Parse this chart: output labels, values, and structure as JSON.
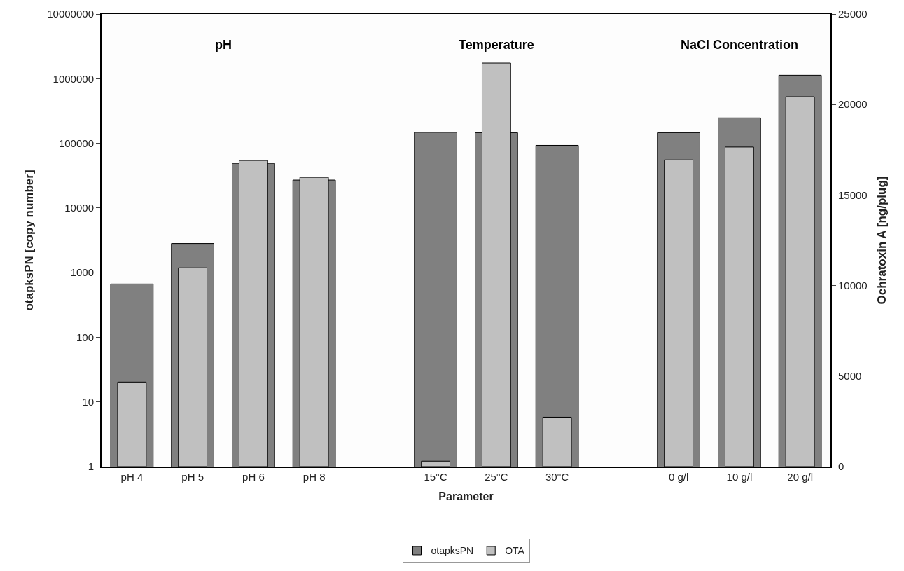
{
  "chart_data": {
    "type": "bar",
    "xlabel": "Parameter",
    "ylabel": "otapksPN [copy number]",
    "y2label": "Ochratoxin A [ng/plug]",
    "categories": [
      "pH 4",
      "pH 5",
      "pH 6",
      "pH 8",
      null,
      "15°C",
      "25°C",
      "30°C",
      null,
      "0 g/l",
      "10 g/l",
      "20 g/l"
    ],
    "series": [
      {
        "name": "otapksPN",
        "color": "#808080",
        "values": [
          667,
          2820,
          49000,
          27000,
          null,
          148000,
          146000,
          93000,
          null,
          146000,
          247000,
          1130000
        ]
      },
      {
        "name": "OTA",
        "color": "#c0c0c0",
        "axis": "y2",
        "values": [
          4670,
          10980,
          16910,
          15980,
          null,
          300,
          22290,
          2730,
          null,
          16940,
          17650,
          20430
        ]
      }
    ],
    "annotations": [
      "pH",
      "Temperature",
      "NaCl Concentration"
    ],
    "log": "y",
    "ylim": [
      1,
      10000000
    ],
    "yticks": [
      1,
      10,
      100,
      1000,
      10000,
      100000,
      1000000,
      10000000
    ],
    "y2lim": [
      0,
      25000
    ],
    "y2ticks": [
      0,
      5000,
      10000,
      15000,
      20000,
      25000
    ],
    "legend": "bottom"
  }
}
